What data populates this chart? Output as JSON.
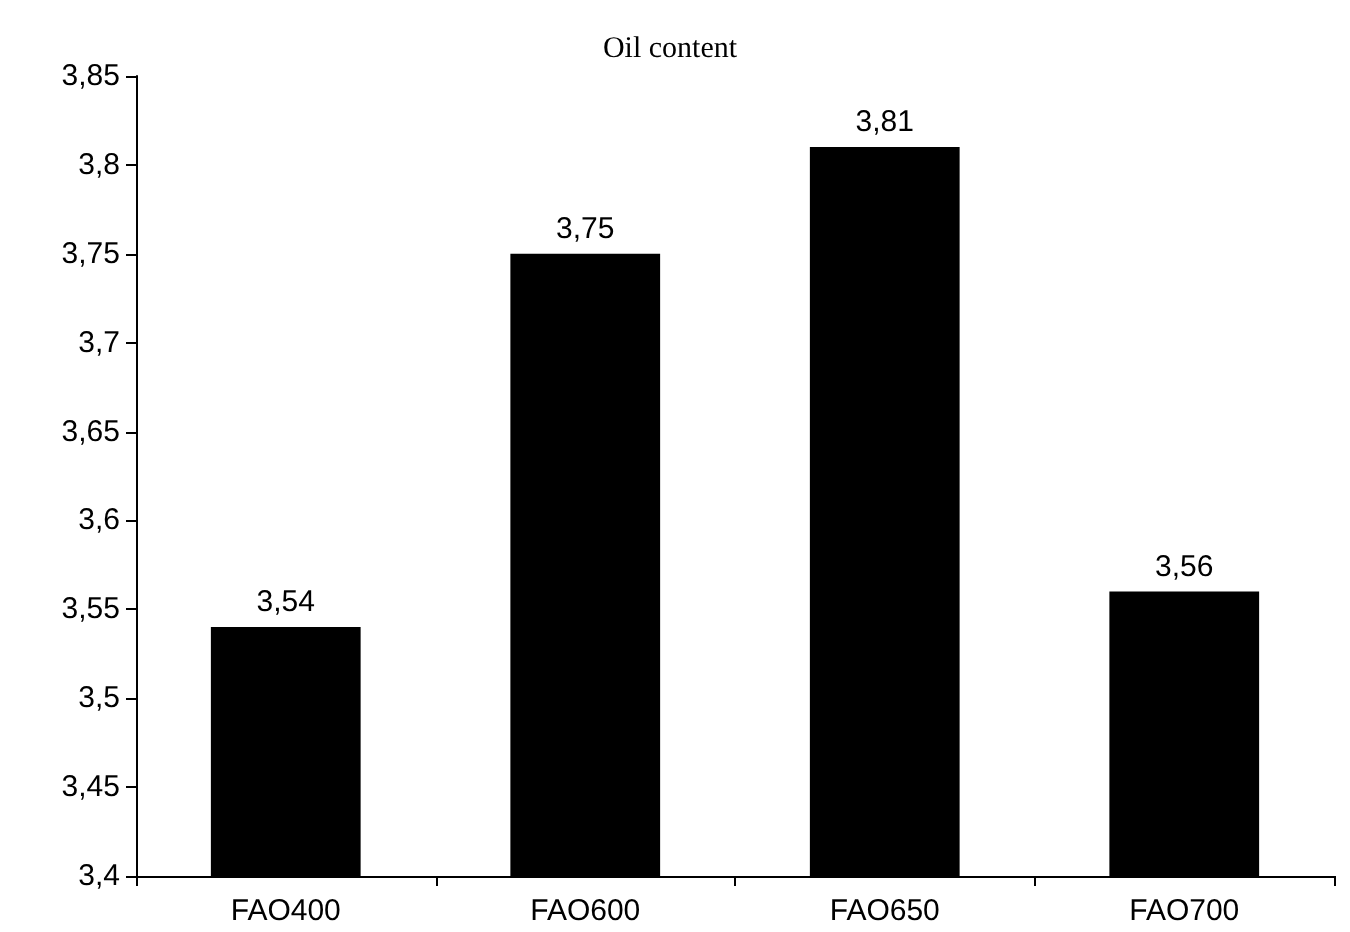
{
  "chart_data": {
    "type": "bar",
    "title": "Oil content",
    "categories": [
      "FAO400",
      "FAO600",
      "FAO650",
      "FAO700"
    ],
    "values": [
      3.54,
      3.75,
      3.81,
      3.56
    ],
    "value_labels": [
      "3,54",
      "3,75",
      "3,81",
      "3,56"
    ],
    "color": "#000000",
    "ylim": [
      3.4,
      3.85
    ],
    "yticks": [
      {
        "value": 3.4,
        "label": "3,4"
      },
      {
        "value": 3.45,
        "label": "3,45"
      },
      {
        "value": 3.5,
        "label": "3,5"
      },
      {
        "value": 3.55,
        "label": "3,55"
      },
      {
        "value": 3.6,
        "label": "3,6"
      },
      {
        "value": 3.65,
        "label": "3,65"
      },
      {
        "value": 3.7,
        "label": "3,7"
      },
      {
        "value": 3.75,
        "label": "3,75"
      },
      {
        "value": 3.8,
        "label": "3,8"
      },
      {
        "value": 3.85,
        "label": "3,85"
      }
    ],
    "grid": false
  }
}
